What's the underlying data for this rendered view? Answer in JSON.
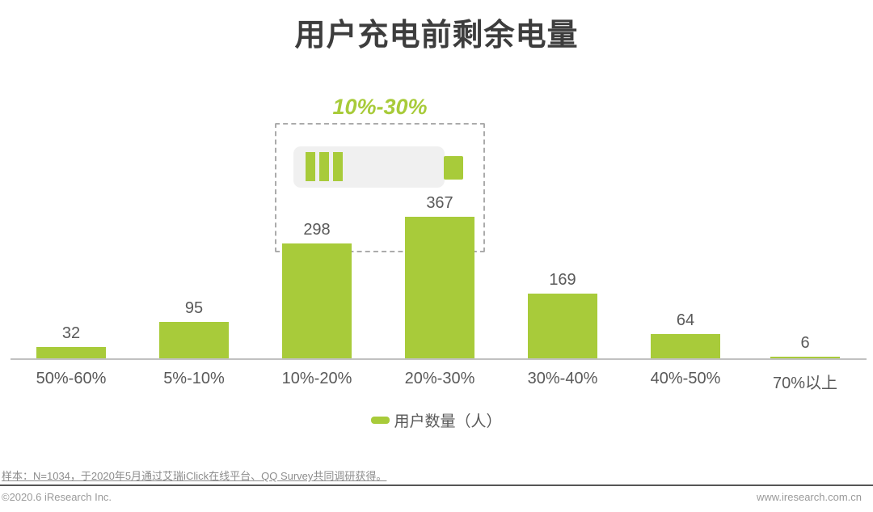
{
  "title": "用户充电前剩余电量",
  "annotation": {
    "label": "10%-30%",
    "color": "#a8cb3a"
  },
  "chart_data": {
    "type": "bar",
    "title": "用户充电前剩余电量",
    "categories": [
      "50%-60%",
      "5%-10%",
      "10%-20%",
      "20%-30%",
      "30%-40%",
      "40%-50%",
      "70%以上"
    ],
    "values": [
      32,
      95,
      298,
      367,
      169,
      64,
      6
    ],
    "series_name": "用户数量（人）",
    "xlabel": "",
    "ylabel": "",
    "ylim": [
      0,
      400
    ],
    "grid": false,
    "legend_position": "bottom",
    "bar_color": "#a8cb3a",
    "highlight": {
      "label": "10%-30%",
      "categories": [
        "10%-20%",
        "20%-30%"
      ]
    }
  },
  "legend": {
    "label": "用户数量（人）",
    "swatch_color": "#a8cb3a"
  },
  "battery_icon": {
    "name": "battery-low-icon",
    "cells": 3
  },
  "footer": {
    "note": "样本：N=1034，于2020年5月通过艾瑞iClick在线平台、QQ Survey共同调研获得。",
    "copyright": "©2020.6 iResearch Inc.",
    "website": "www.iresearch.com.cn"
  },
  "colors": {
    "accent_green": "#a8cb3a",
    "title_text": "#3d3d3d",
    "label_text": "#595959",
    "axis_line": "#c1c1c1",
    "dashed_border": "#ababab",
    "battery_body": "#f0f0f0",
    "footer_text": "#8c8c8c",
    "footer_rule": "#555555",
    "footer_small_text": "#9a9a9a"
  }
}
